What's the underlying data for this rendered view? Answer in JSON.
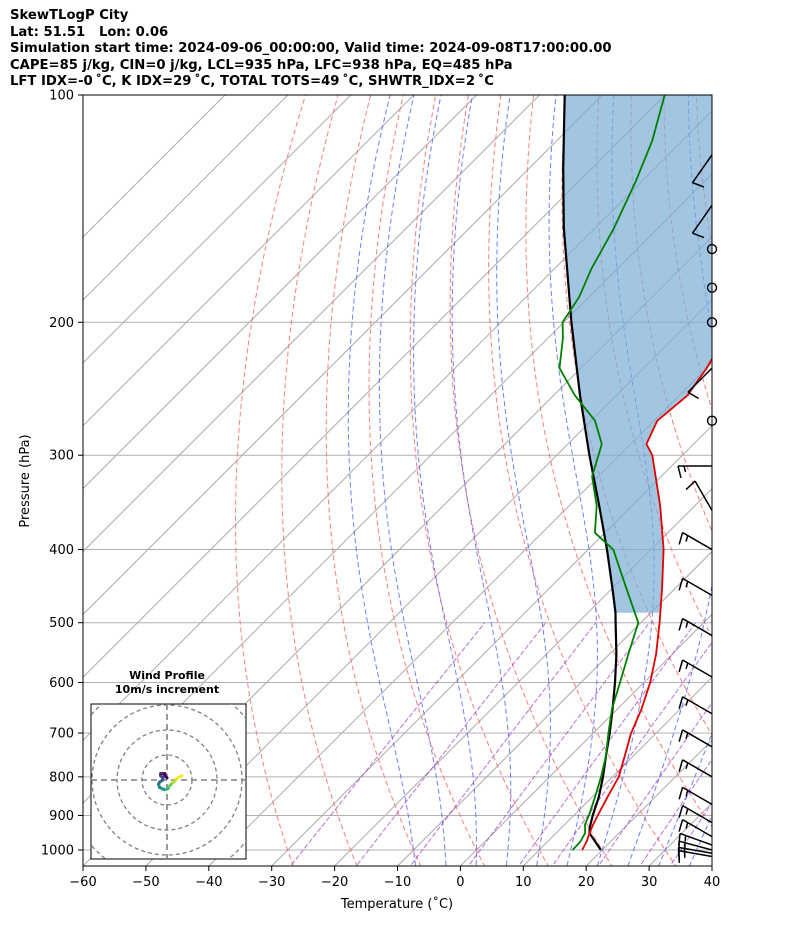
{
  "header": {
    "line1": "SkewTLogP City",
    "line2": "Lat: 51.51   Lon: 0.06",
    "line3": "Simulation start time: 2024-09-06_00:00:00, Valid time: 2024-09-08T17:00:00.00",
    "line4": "CAPE=85 j/kg, CIN=0 j/kg, LCL=935 hPa, LFC=938 hPa, EQ=485 hPa",
    "line5": "LFT IDX=-0 ˚C, K IDX=29 ˚C, TOTAL TOTS=49 ˚C, SHWTR_IDX=2 ˚C"
  },
  "chart_data": {
    "type": "line",
    "xlabel": "Temperature (˚C)",
    "ylabel": "Pressure (hPa)",
    "xlim": [
      -60,
      40
    ],
    "ylim": [
      1050,
      100
    ],
    "y_scale": "log",
    "x_ticks": [
      -60,
      -50,
      -40,
      -30,
      -20,
      -10,
      0,
      10,
      20,
      30,
      40
    ],
    "y_ticks": [
      1000,
      900,
      800,
      700,
      600,
      500,
      400,
      300,
      200,
      100
    ],
    "grid": true,
    "colors": {
      "temperature": "#e00000",
      "dewpoint": "#008000",
      "parcel": "#000000",
      "cape_fill": "#7aaed4",
      "dry_adiabat": "#ff6666",
      "moist_adiabat": "#5566ff",
      "mixing_ratio": "#9933cc",
      "isotherm": "#aaaaaa"
    },
    "temperature": {
      "pressure": [
        1000,
        975,
        950,
        925,
        900,
        850,
        800,
        750,
        700,
        650,
        600,
        550,
        500,
        450,
        400,
        350,
        300,
        290,
        270,
        250,
        230,
        210,
        190,
        175,
        160,
        145,
        130,
        115,
        105,
        100
      ],
      "temp": [
        16.8,
        16.2,
        15.3,
        14.5,
        13.8,
        12.4,
        11.0,
        8.6,
        6.0,
        3.8,
        1.0,
        -2.6,
        -7.0,
        -12.1,
        -18.0,
        -25.5,
        -34.8,
        -37.5,
        -39.5,
        -38.7,
        -40.0,
        -42.0,
        -45.0,
        -46.5,
        -48.5,
        -49.5,
        -50.5,
        -52.0,
        -52.5,
        -53.0
      ]
    },
    "dewpoint": {
      "pressure": [
        1000,
        975,
        950,
        925,
        900,
        850,
        800,
        750,
        700,
        650,
        600,
        550,
        500,
        450,
        400,
        380,
        350,
        320,
        290,
        270,
        250,
        230,
        210,
        200,
        185,
        170,
        150,
        130,
        115,
        100
      ],
      "dewpoint": [
        15.3,
        15.2,
        14.6,
        13.2,
        12.4,
        10.4,
        8.2,
        5.6,
        2.4,
        -0.9,
        -3.8,
        -7.0,
        -10.4,
        -17.8,
        -26.0,
        -31.6,
        -35.6,
        -41.0,
        -44.6,
        -49.4,
        -56.6,
        -63.4,
        -67.6,
        -70.2,
        -71.6,
        -74.1,
        -77.0,
        -81.0,
        -84.8,
        -90.1
      ]
    },
    "parcel": {
      "pressure": [
        1000,
        950,
        935,
        900,
        850,
        800,
        750,
        700,
        650,
        600,
        550,
        500,
        485,
        450,
        400,
        350,
        300,
        250,
        200,
        150,
        125,
        100
      ],
      "temp": [
        19.8,
        15.3,
        14.5,
        13.0,
        11.0,
        8.5,
        5.6,
        2.6,
        -0.8,
        -4.6,
        -8.9,
        -14.0,
        -15.6,
        -20.0,
        -27.0,
        -35.2,
        -44.8,
        -55.8,
        -68.8,
        -85.0,
        -94.6,
        -106.0
      ]
    },
    "wind_barbs": {
      "pressure": [
        1020,
        1010,
        1000,
        985,
        960,
        920,
        870,
        800,
        730,
        660,
        590,
        520,
        460,
        400,
        355,
        310,
        270,
        230,
        200,
        180,
        160,
        140,
        120
      ],
      "speed_kt": [
        15,
        15,
        15,
        15,
        15,
        15,
        15,
        15,
        15,
        15,
        15,
        15,
        15,
        15,
        10,
        15,
        0,
        10,
        0,
        0,
        0,
        10,
        10
      ],
      "direction_deg": [
        280,
        280,
        285,
        290,
        300,
        300,
        300,
        300,
        300,
        300,
        300,
        300,
        300,
        300,
        330,
        270,
        0,
        225,
        0,
        0,
        0,
        215,
        215
      ]
    },
    "hodograph": {
      "title": "Wind Profile",
      "subtitle": "10m/s increment",
      "rings_ms": [
        10,
        20,
        30,
        40
      ],
      "u_ms": [
        7.0,
        6.0,
        5.0,
        4.0,
        3.0,
        2.0,
        1.0,
        0.5,
        -0.5,
        -1.5,
        -2.5,
        -3.5,
        -4.0,
        -3.5,
        -2.0,
        -2.0,
        -3.0,
        -3.0,
        -2.0,
        -1.0,
        -1.0,
        0.0
      ],
      "v_ms": [
        2.0,
        1.5,
        1.0,
        0.0,
        -1.0,
        -2.0,
        -3.0,
        -4.0,
        -4.5,
        -4.5,
        -4.0,
        -3.5,
        -2.0,
        -1.0,
        0.0,
        1.0,
        2.0,
        3.0,
        3.0,
        3.0,
        2.0,
        1.0
      ]
    }
  }
}
